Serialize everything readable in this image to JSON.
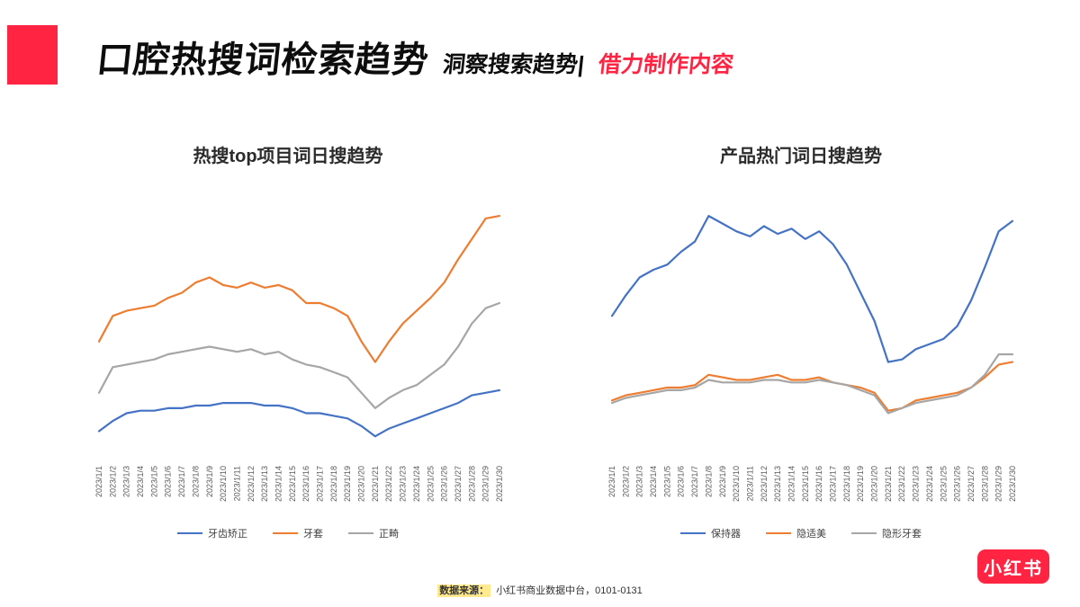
{
  "header": {
    "title": "口腔热搜词检索趋势",
    "subtitle": "洞察搜索趋势|",
    "subtitle_accent": "借力制作内容"
  },
  "colors": {
    "accent": "#ff2442",
    "series_blue": "#4472c4",
    "series_orange": "#ed7d31",
    "series_gray": "#a6a6a6"
  },
  "chart_data": [
    {
      "type": "line",
      "title": "热搜top项目词日搜趋势",
      "xlabel": "",
      "ylabel": "",
      "ylim": [
        0,
        100
      ],
      "grid": false,
      "legend_position": "bottom",
      "x": [
        "2023/1/1",
        "2023/1/2",
        "2023/1/3",
        "2023/1/4",
        "2023/1/5",
        "2023/1/6",
        "2023/1/7",
        "2023/1/8",
        "2023/1/9",
        "2023/1/10",
        "2023/1/11",
        "2023/1/12",
        "2023/1/13",
        "2023/1/14",
        "2023/1/15",
        "2023/1/16",
        "2023/1/17",
        "2023/1/18",
        "2023/1/19",
        "2023/1/20",
        "2023/1/21",
        "2023/1/22",
        "2023/1/23",
        "2023/1/24",
        "2023/1/25",
        "2023/1/26",
        "2023/1/27",
        "2023/1/28",
        "2023/1/29",
        "2023/1/30"
      ],
      "series": [
        {
          "name": "牙齿矫正",
          "color": "#4472c4",
          "values": [
            10,
            14,
            17,
            18,
            18,
            19,
            19,
            20,
            20,
            21,
            21,
            21,
            20,
            20,
            19,
            17,
            17,
            16,
            15,
            12,
            8,
            11,
            13,
            15,
            17,
            19,
            21,
            24,
            25,
            26
          ]
        },
        {
          "name": "牙套",
          "color": "#ed7d31",
          "values": [
            45,
            55,
            57,
            58,
            59,
            62,
            64,
            68,
            70,
            67,
            66,
            68,
            66,
            67,
            65,
            60,
            60,
            58,
            55,
            45,
            37,
            45,
            52,
            57,
            62,
            68,
            77,
            85,
            93,
            94
          ]
        },
        {
          "name": "正畸",
          "color": "#a6a6a6",
          "values": [
            25,
            35,
            36,
            37,
            38,
            40,
            41,
            42,
            43,
            42,
            41,
            42,
            40,
            41,
            38,
            36,
            35,
            33,
            31,
            25,
            19,
            23,
            26,
            28,
            32,
            36,
            43,
            52,
            58,
            60
          ]
        }
      ]
    },
    {
      "type": "line",
      "title": "产品热门词日搜趋势",
      "xlabel": "",
      "ylabel": "",
      "ylim": [
        0,
        100
      ],
      "grid": false,
      "legend_position": "bottom",
      "x": [
        "2023/1/1",
        "2023/1/2",
        "2023/1/3",
        "2023/1/4",
        "2023/1/5",
        "2023/1/6",
        "2023/1/7",
        "2023/1/8",
        "2023/1/9",
        "2023/1/10",
        "2023/1/11",
        "2023/1/12",
        "2023/1/13",
        "2023/1/14",
        "2023/1/15",
        "2023/1/16",
        "2023/1/17",
        "2023/1/18",
        "2023/1/19",
        "2023/1/20",
        "2023/1/21",
        "2023/1/22",
        "2023/1/23",
        "2023/1/24",
        "2023/1/25",
        "2023/1/26",
        "2023/1/27",
        "2023/1/28",
        "2023/1/29",
        "2023/1/30"
      ],
      "series": [
        {
          "name": "保持器",
          "color": "#4472c4",
          "values": [
            55,
            63,
            70,
            73,
            75,
            80,
            84,
            94,
            91,
            88,
            86,
            90,
            87,
            89,
            85,
            88,
            83,
            75,
            64,
            53,
            37,
            38,
            42,
            44,
            46,
            51,
            61,
            74,
            88,
            92
          ]
        },
        {
          "name": "隐适美",
          "color": "#ed7d31",
          "values": [
            22,
            24,
            25,
            26,
            27,
            27,
            28,
            32,
            31,
            30,
            30,
            31,
            32,
            30,
            30,
            31,
            29,
            28,
            27,
            25,
            18,
            19,
            22,
            23,
            24,
            25,
            27,
            31,
            36,
            37
          ]
        },
        {
          "name": "隐形牙套",
          "color": "#a6a6a6",
          "values": [
            21,
            23,
            24,
            25,
            26,
            26,
            27,
            30,
            29,
            29,
            29,
            30,
            30,
            29,
            29,
            30,
            29,
            28,
            26,
            24,
            17,
            19,
            21,
            22,
            23,
            24,
            27,
            32,
            40,
            40
          ]
        }
      ]
    }
  ],
  "footer": {
    "source_label": "数据来源：",
    "source_value": "小红书商业数据中台，0101-0131"
  },
  "logo": {
    "text": "小红书"
  }
}
